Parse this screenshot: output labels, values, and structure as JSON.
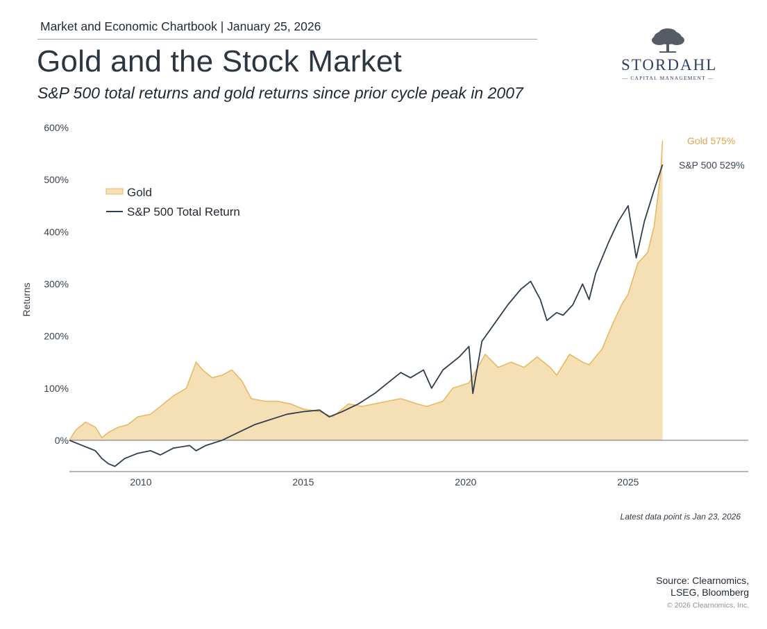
{
  "header": {
    "chartbook": "Market and Economic Chartbook | January 25, 2026",
    "title": "Gold and the Stock Market",
    "subtitle": "S&P 500 total returns and gold returns since prior cycle peak in 2007"
  },
  "logo": {
    "name": "STORDAHL",
    "tagline": "CAPITAL MANAGEMENT",
    "icon": "tree-icon"
  },
  "colors": {
    "gold_fill": "#f5dfb5",
    "gold_line": "#e8b964",
    "sp500_line": "#2f3d4c",
    "gold_label": "#e0a64f",
    "sp500_label": "#3a4654"
  },
  "chart_data": {
    "type": "area",
    "title": "Gold and the Stock Market",
    "ylabel": "Returns",
    "xlabel": "",
    "xlim": [
      2007.8,
      2028.7
    ],
    "ylim": [
      -60,
      600
    ],
    "yticks": [
      0,
      100,
      200,
      300,
      400,
      500,
      600
    ],
    "ytick_labels": [
      "0%",
      "100%",
      "200%",
      "300%",
      "400%",
      "500%",
      "600%"
    ],
    "xticks": [
      2010,
      2015,
      2020,
      2025
    ],
    "xtick_labels": [
      "2010",
      "2015",
      "2020",
      "2025"
    ],
    "legend_position": "top-left",
    "series": [
      {
        "name": "Gold",
        "style": "area",
        "end_label": "Gold 575%",
        "points": [
          [
            2007.8,
            0
          ],
          [
            2008.0,
            20
          ],
          [
            2008.3,
            35
          ],
          [
            2008.6,
            25
          ],
          [
            2008.8,
            5
          ],
          [
            2009.0,
            15
          ],
          [
            2009.3,
            25
          ],
          [
            2009.6,
            30
          ],
          [
            2009.9,
            45
          ],
          [
            2010.3,
            50
          ],
          [
            2010.7,
            70
          ],
          [
            2011.0,
            85
          ],
          [
            2011.4,
            100
          ],
          [
            2011.7,
            150
          ],
          [
            2011.9,
            135
          ],
          [
            2012.2,
            120
          ],
          [
            2012.5,
            125
          ],
          [
            2012.8,
            135
          ],
          [
            2013.1,
            115
          ],
          [
            2013.4,
            80
          ],
          [
            2013.8,
            75
          ],
          [
            2014.2,
            75
          ],
          [
            2014.6,
            70
          ],
          [
            2015.0,
            60
          ],
          [
            2015.5,
            55
          ],
          [
            2015.9,
            45
          ],
          [
            2016.4,
            70
          ],
          [
            2016.8,
            65
          ],
          [
            2017.2,
            70
          ],
          [
            2017.6,
            75
          ],
          [
            2018.0,
            80
          ],
          [
            2018.5,
            70
          ],
          [
            2018.8,
            65
          ],
          [
            2019.3,
            75
          ],
          [
            2019.6,
            100
          ],
          [
            2020.1,
            110
          ],
          [
            2020.6,
            165
          ],
          [
            2021.0,
            140
          ],
          [
            2021.4,
            150
          ],
          [
            2021.8,
            140
          ],
          [
            2022.2,
            160
          ],
          [
            2022.6,
            140
          ],
          [
            2022.8,
            125
          ],
          [
            2023.2,
            165
          ],
          [
            2023.6,
            150
          ],
          [
            2023.8,
            145
          ],
          [
            2024.2,
            175
          ],
          [
            2024.5,
            220
          ],
          [
            2024.8,
            260
          ],
          [
            2025.0,
            280
          ],
          [
            2025.3,
            340
          ],
          [
            2025.6,
            360
          ],
          [
            2025.8,
            410
          ],
          [
            2026.0,
            510
          ],
          [
            2026.06,
            575
          ]
        ]
      },
      {
        "name": "S&P 500 Total Return",
        "style": "line",
        "end_label": "S&P 500 529%",
        "points": [
          [
            2007.8,
            0
          ],
          [
            2008.2,
            -10
          ],
          [
            2008.6,
            -20
          ],
          [
            2008.8,
            -35
          ],
          [
            2009.0,
            -45
          ],
          [
            2009.2,
            -50
          ],
          [
            2009.5,
            -35
          ],
          [
            2009.9,
            -25
          ],
          [
            2010.3,
            -20
          ],
          [
            2010.6,
            -28
          ],
          [
            2011.0,
            -15
          ],
          [
            2011.5,
            -10
          ],
          [
            2011.7,
            -20
          ],
          [
            2012.0,
            -10
          ],
          [
            2012.5,
            0
          ],
          [
            2013.0,
            15
          ],
          [
            2013.5,
            30
          ],
          [
            2014.0,
            40
          ],
          [
            2014.5,
            50
          ],
          [
            2015.0,
            55
          ],
          [
            2015.5,
            58
          ],
          [
            2015.8,
            45
          ],
          [
            2016.2,
            55
          ],
          [
            2016.7,
            70
          ],
          [
            2017.2,
            90
          ],
          [
            2017.6,
            110
          ],
          [
            2018.0,
            130
          ],
          [
            2018.3,
            120
          ],
          [
            2018.7,
            135
          ],
          [
            2018.95,
            100
          ],
          [
            2019.3,
            135
          ],
          [
            2019.8,
            160
          ],
          [
            2020.1,
            180
          ],
          [
            2020.22,
            90
          ],
          [
            2020.5,
            190
          ],
          [
            2020.9,
            225
          ],
          [
            2021.3,
            260
          ],
          [
            2021.7,
            290
          ],
          [
            2022.0,
            305
          ],
          [
            2022.3,
            270
          ],
          [
            2022.5,
            230
          ],
          [
            2022.8,
            245
          ],
          [
            2023.0,
            240
          ],
          [
            2023.3,
            260
          ],
          [
            2023.6,
            300
          ],
          [
            2023.8,
            270
          ],
          [
            2024.0,
            320
          ],
          [
            2024.4,
            380
          ],
          [
            2024.7,
            420
          ],
          [
            2024.9,
            440
          ],
          [
            2025.0,
            450
          ],
          [
            2025.25,
            350
          ],
          [
            2025.5,
            420
          ],
          [
            2025.8,
            480
          ],
          [
            2026.06,
            529
          ]
        ]
      }
    ],
    "annotation": "Latest data point is Jan 23, 2026"
  },
  "footer": {
    "source_line1": "Source: Clearnomics,",
    "source_line2": "LSEG, Bloomberg",
    "copyright": "© 2026 Clearnomics, Inc."
  }
}
